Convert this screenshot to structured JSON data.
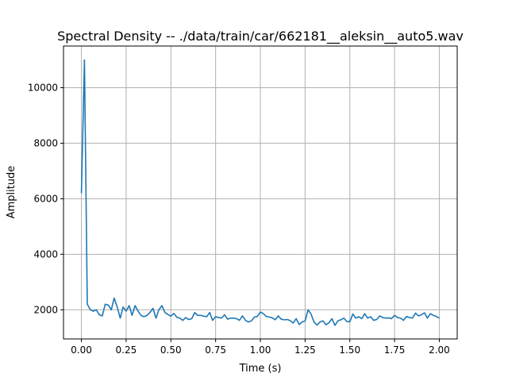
{
  "chart_data": {
    "type": "line",
    "title": "Spectral Density -- ./data/train/car/662181__aleksin__auto5.wav",
    "xlabel": "Time (s)",
    "ylabel": "Amplitude",
    "xlim": [
      -0.1,
      2.1
    ],
    "ylim": [
      950,
      11500
    ],
    "xticks": [
      0.0,
      0.25,
      0.5,
      0.75,
      1.0,
      1.25,
      1.5,
      1.75,
      2.0
    ],
    "xtick_labels": [
      "0.00",
      "0.25",
      "0.50",
      "0.75",
      "1.00",
      "1.25",
      "1.50",
      "1.75",
      "2.00"
    ],
    "yticks": [
      2000,
      4000,
      6000,
      8000,
      10000
    ],
    "ytick_labels": [
      "2000",
      "4000",
      "6000",
      "8000",
      "10000"
    ],
    "grid": true,
    "series": [
      {
        "color": "#1f77b4",
        "x": [
          0.0,
          0.017,
          0.033,
          0.05,
          0.067,
          0.083,
          0.1,
          0.117,
          0.133,
          0.15,
          0.167,
          0.183,
          0.2,
          0.217,
          0.233,
          0.25,
          0.267,
          0.283,
          0.3,
          0.317,
          0.333,
          0.35,
          0.367,
          0.383,
          0.4,
          0.417,
          0.433,
          0.45,
          0.467,
          0.483,
          0.5,
          0.517,
          0.533,
          0.55,
          0.567,
          0.583,
          0.6,
          0.617,
          0.633,
          0.65,
          0.667,
          0.683,
          0.7,
          0.717,
          0.733,
          0.75,
          0.767,
          0.783,
          0.8,
          0.817,
          0.833,
          0.85,
          0.867,
          0.883,
          0.9,
          0.917,
          0.933,
          0.95,
          0.967,
          0.983,
          1.0,
          1.017,
          1.033,
          1.05,
          1.067,
          1.083,
          1.1,
          1.117,
          1.133,
          1.15,
          1.167,
          1.183,
          1.2,
          1.217,
          1.233,
          1.25,
          1.267,
          1.283,
          1.3,
          1.317,
          1.333,
          1.35,
          1.367,
          1.383,
          1.4,
          1.417,
          1.433,
          1.45,
          1.467,
          1.483,
          1.5,
          1.517,
          1.533,
          1.55,
          1.567,
          1.583,
          1.6,
          1.617,
          1.633,
          1.65,
          1.667,
          1.683,
          1.7,
          1.717,
          1.733,
          1.75,
          1.767,
          1.783,
          1.8,
          1.817,
          1.833,
          1.85,
          1.867,
          1.883,
          1.9,
          1.917,
          1.933,
          1.95,
          1.967,
          1.983,
          2.0
        ],
        "values": [
          6200,
          11000,
          2200,
          2000,
          1950,
          2000,
          1820,
          1780,
          2200,
          2170,
          2000,
          2420,
          2100,
          1700,
          2100,
          1950,
          2150,
          1800,
          2150,
          1950,
          1800,
          1750,
          1800,
          1900,
          2050,
          1700,
          2000,
          2150,
          1900,
          1830,
          1770,
          1870,
          1730,
          1700,
          1620,
          1720,
          1650,
          1680,
          1900,
          1800,
          1800,
          1770,
          1750,
          1900,
          1620,
          1750,
          1720,
          1700,
          1820,
          1660,
          1700,
          1700,
          1680,
          1620,
          1780,
          1620,
          1560,
          1600,
          1740,
          1760,
          1920,
          1860,
          1760,
          1740,
          1710,
          1640,
          1780,
          1660,
          1640,
          1650,
          1610,
          1520,
          1680,
          1470,
          1560,
          1600,
          2000,
          1850,
          1560,
          1450,
          1560,
          1600,
          1460,
          1530,
          1680,
          1440,
          1600,
          1640,
          1700,
          1580,
          1570,
          1850,
          1700,
          1750,
          1680,
          1860,
          1700,
          1750,
          1620,
          1650,
          1780,
          1720,
          1700,
          1710,
          1680,
          1800,
          1720,
          1700,
          1620,
          1760,
          1720,
          1700,
          1880,
          1780,
          1820,
          1890,
          1700,
          1860,
          1800,
          1760,
          1700
        ]
      }
    ]
  }
}
